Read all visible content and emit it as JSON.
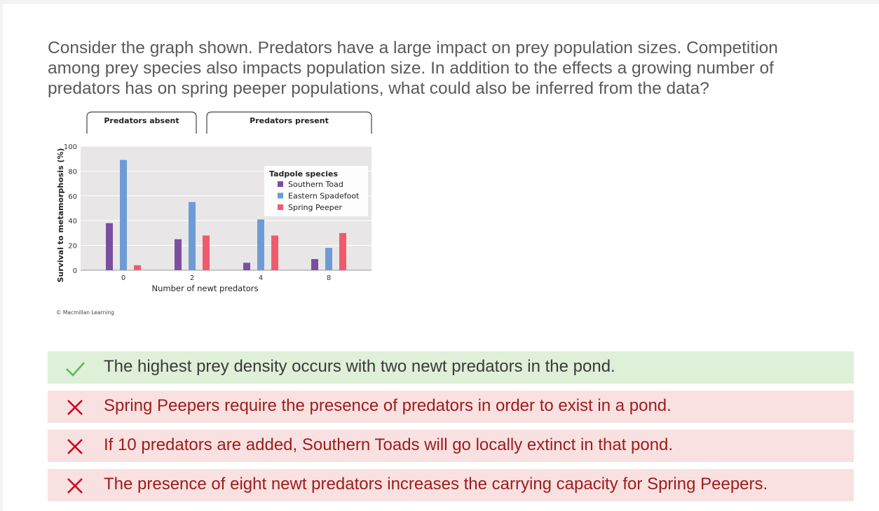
{
  "question": "Consider the graph shown. Predators have a large impact on prey population sizes. Competition among prey species also impacts population size. In addition to the effects a growing number of predators has on spring peeper populations, what could also be inferred from the data?",
  "chart_data": {
    "type": "bar",
    "headers": [
      "Predators absent",
      "Predators present"
    ],
    "categories": [
      "0",
      "2",
      "4",
      "8"
    ],
    "xlabel": "Number of newt predators",
    "ylabel": "Survival to metamorphosis (%)",
    "ylim": [
      0,
      100
    ],
    "yticks": [
      0,
      20,
      40,
      60,
      80,
      100
    ],
    "grid": true,
    "legend_title": "Tadpole species",
    "legend_position": "top-right",
    "series": [
      {
        "name": "Southern Toad",
        "color": "#7b4fa0",
        "values": [
          38,
          25,
          6,
          9
        ]
      },
      {
        "name": "Eastern Spadefoot",
        "color": "#6d9bd6",
        "values": [
          89,
          55,
          41,
          18
        ]
      },
      {
        "name": "Spring Peeper",
        "color": "#ef5b6c",
        "values": [
          4,
          28,
          28,
          30
        ]
      }
    ],
    "credit": "© Macmillan Learning"
  },
  "answers": [
    {
      "text": "The highest prey density occurs with two newt predators in the pond.",
      "status": "correct",
      "icon": "check-icon"
    },
    {
      "text": "Spring Peepers require the presence of predators in order to exist in a pond.",
      "status": "incorrect",
      "icon": "cross-icon"
    },
    {
      "text": "If 10 predators are added, Southern Toads will go locally extinct in that pond.",
      "status": "incorrect",
      "icon": "cross-icon"
    },
    {
      "text": "The presence of eight newt predators increases the carrying capacity for Spring Peepers.",
      "status": "incorrect",
      "icon": "cross-icon"
    }
  ],
  "colors": {
    "correct_bg": "#dff0d8",
    "incorrect_bg": "#f9e1e1",
    "check": "#5cb85c",
    "cross": "#d0021b"
  }
}
